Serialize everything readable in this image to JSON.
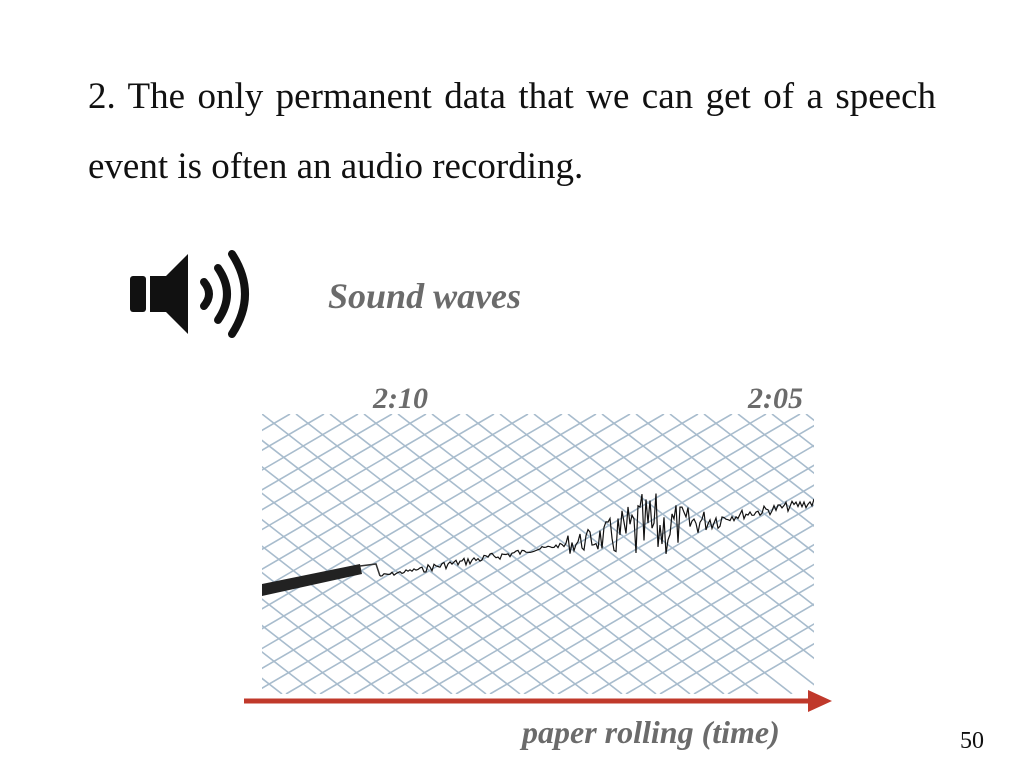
{
  "slide": {
    "paragraph": "2. The only permanent data that we can get of a speech event is often an audio recording.",
    "sound_label": "Sound waves",
    "time_left": "2:10",
    "time_right": "2:05",
    "axis_label": "paper rolling (time)",
    "page_number": "50"
  },
  "icons": {
    "speaker": "speaker-volume-icon",
    "arrow": "arrow-right-icon"
  },
  "colors": {
    "text": "#111111",
    "label_gray": "#6b6b6b",
    "arrow_red": "#c0392b",
    "grid": "#9fb6c9"
  }
}
